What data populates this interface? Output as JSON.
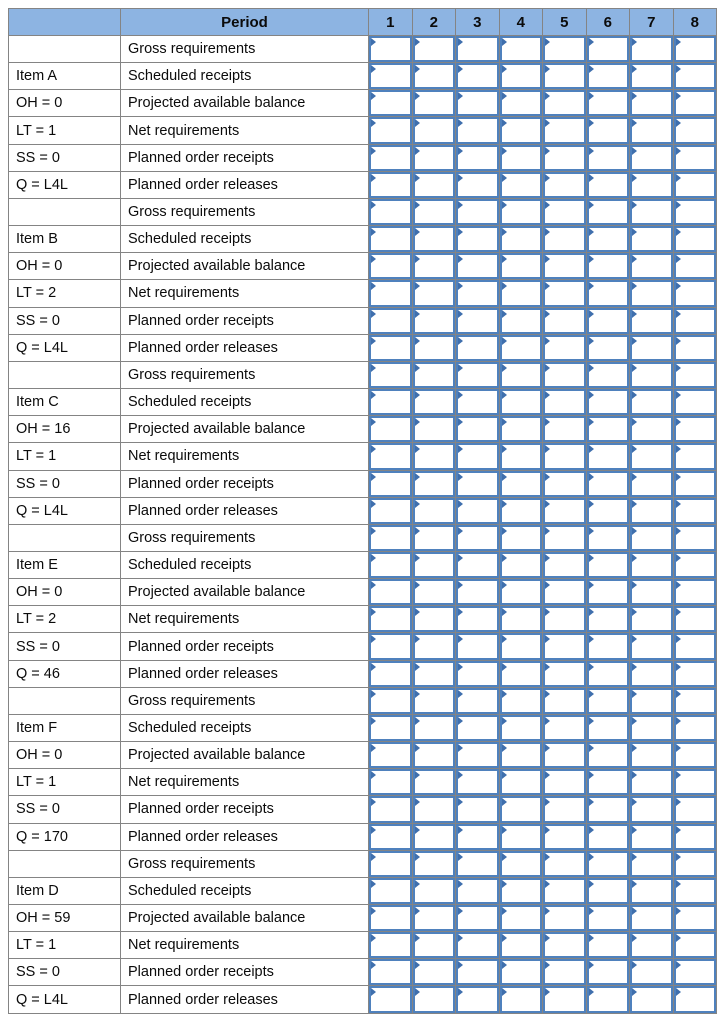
{
  "table": {
    "header": {
      "item_col_label": "",
      "period_label": "Period",
      "period_numbers": [
        "1",
        "2",
        "3",
        "4",
        "5",
        "6",
        "7",
        "8"
      ]
    },
    "row_descriptors": [
      "Gross requirements",
      "Scheduled receipts",
      "Projected available balance",
      "Net requirements",
      "Planned order receipts",
      "Planned order releases"
    ],
    "items": [
      {
        "side_labels": [
          "",
          "Item A",
          "OH = 0",
          "LT = 1",
          "SS = 0",
          "Q = L4L"
        ]
      },
      {
        "side_labels": [
          "",
          "Item B",
          "OH = 0",
          "LT = 2",
          "SS = 0",
          "Q = L4L"
        ]
      },
      {
        "side_labels": [
          "",
          "Item C",
          "OH = 16",
          "LT = 1",
          "SS = 0",
          "Q = L4L"
        ]
      },
      {
        "side_labels": [
          "",
          "Item E",
          "OH = 0",
          "LT = 2",
          "SS = 0",
          "Q = 46"
        ]
      },
      {
        "side_labels": [
          "",
          "Item F",
          "OH = 0",
          "LT = 1",
          "SS = 0",
          "Q = 170"
        ]
      },
      {
        "side_labels": [
          "",
          "Item D",
          "OH = 59",
          "LT = 1",
          "SS = 0",
          "Q = L4L"
        ]
      }
    ],
    "answer_cells_per_row": 8,
    "answer_cell_value": ""
  },
  "colors": {
    "header_bg": "#8db4e2",
    "grid_border": "#848484",
    "input_border": "#4f81bd",
    "marker": "#3f6fad"
  }
}
